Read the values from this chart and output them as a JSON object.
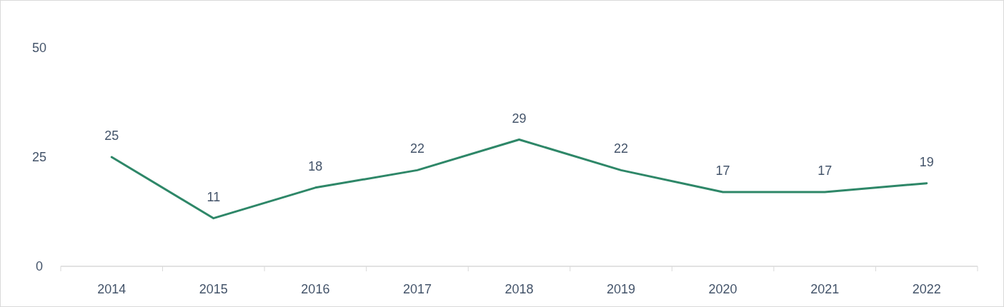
{
  "chart_data": {
    "type": "line",
    "categories": [
      "2014",
      "2015",
      "2016",
      "2017",
      "2018",
      "2019",
      "2020",
      "2021",
      "2022"
    ],
    "series": [
      {
        "color": "#2e8768",
        "values": [
          25,
          11,
          18,
          22,
          29,
          22,
          17,
          17,
          19
        ]
      }
    ],
    "ylim": [
      0,
      50
    ],
    "yticks": [
      0,
      25,
      50
    ],
    "grid": false,
    "data_labels": true,
    "marker": "none",
    "line_style": "solid"
  }
}
